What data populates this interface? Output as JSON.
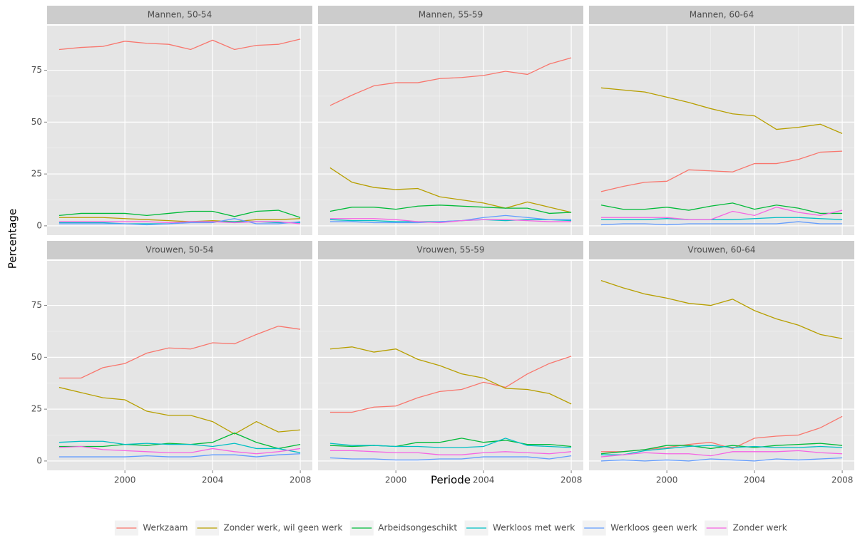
{
  "chart_data": {
    "type": "line",
    "x_label": "Periode",
    "y_label": "Percentage",
    "x": [
      1997,
      1998,
      1999,
      2000,
      2001,
      2002,
      2003,
      2004,
      2005,
      2006,
      2007,
      2008
    ],
    "xlim": [
      1996.45,
      2008.55
    ],
    "xticks": [
      2000,
      2004,
      2008
    ],
    "ylim": [
      -4.5,
      96.5
    ],
    "yticks": [
      0,
      25,
      50,
      75
    ],
    "grid": true,
    "legend": "bottom",
    "series": [
      {
        "name": "Werkzaam",
        "color": "#F8766D"
      },
      {
        "name": "Zonder werk, wil geen werk",
        "color": "#B79F00"
      },
      {
        "name": "Arbeidsongeschikt",
        "color": "#00BA38"
      },
      {
        "name": "Werkloos met werk",
        "color": "#00BFC4"
      },
      {
        "name": "Werkloos geen werk",
        "color": "#619CFF"
      },
      {
        "name": "Zonder werk",
        "color": "#F564E3"
      }
    ],
    "panels": [
      {
        "title": "Mannen, 50-54",
        "series": [
          {
            "values": [
              85,
              86,
              86.5,
              89,
              88,
              87.5,
              85,
              89.5,
              85,
              87,
              87.5,
              90
            ]
          },
          {
            "values": [
              4,
              4,
              4,
              3.5,
              3,
              2.5,
              2,
              2.5,
              2,
              3,
              3,
              3.5
            ]
          },
          {
            "values": [
              5,
              6,
              6,
              6,
              5,
              6,
              7,
              7,
              4.5,
              7,
              7.5,
              4
            ]
          },
          {
            "values": [
              1.5,
              1.5,
              1.5,
              1,
              1,
              1,
              2,
              2,
              2,
              2,
              1.5,
              1.5
            ]
          },
          {
            "values": [
              1,
              1,
              1,
              1,
              0.5,
              1,
              1.5,
              1.5,
              3.5,
              1,
              1,
              2
            ]
          },
          {
            "values": [
              2,
              2,
              2,
              2,
              2,
              1.5,
              2,
              2,
              1.5,
              2,
              2,
              1
            ]
          }
        ]
      },
      {
        "title": "Mannen, 55-59",
        "series": [
          {
            "values": [
              58,
              63,
              67.5,
              69,
              69,
              71,
              71.5,
              72.5,
              74.5,
              73,
              78,
              81
            ]
          },
          {
            "values": [
              28,
              21,
              18.5,
              17.5,
              18,
              14,
              12.5,
              11,
              8.5,
              11.5,
              9,
              6.5
            ]
          },
          {
            "values": [
              7,
              9,
              9,
              8,
              9.5,
              10,
              9.5,
              9,
              8.5,
              8.5,
              6,
              6.5
            ]
          },
          {
            "values": [
              3,
              2.5,
              2.5,
              2,
              2,
              2,
              2.5,
              3,
              2.5,
              3,
              3,
              2.5
            ]
          },
          {
            "values": [
              2,
              2,
              1.5,
              1.5,
              1.5,
              2,
              2.5,
              4,
              5,
              4,
              3,
              3
            ]
          },
          {
            "values": [
              3.5,
              3.5,
              3.5,
              3,
              2,
              1.5,
              2.5,
              3,
              3,
              2.5,
              2,
              2
            ]
          }
        ]
      },
      {
        "title": "Mannen, 60-64",
        "series": [
          {
            "values": [
              16.5,
              19,
              21,
              21.5,
              27,
              26.5,
              26,
              30,
              30,
              32,
              35.5,
              36
            ]
          },
          {
            "values": [
              66.5,
              65.5,
              64.5,
              62,
              59.5,
              56.5,
              54,
              53,
              46.5,
              47.5,
              49,
              44.5
            ]
          },
          {
            "values": [
              10,
              8,
              8,
              9,
              7.5,
              9.5,
              11,
              8,
              10,
              8.5,
              6,
              6
            ]
          },
          {
            "values": [
              3,
              3,
              3,
              3.5,
              3,
              3,
              3,
              3.5,
              4,
              4,
              3.5,
              3
            ]
          },
          {
            "values": [
              0.5,
              1,
              1,
              0.5,
              1,
              1,
              1,
              1,
              1,
              2,
              1,
              1
            ]
          },
          {
            "values": [
              4,
              4,
              4,
              4,
              3,
              3,
              7,
              5,
              9,
              6.5,
              5,
              7.5
            ]
          }
        ]
      },
      {
        "title": "Vrouwen, 50-54",
        "series": [
          {
            "values": [
              40,
              40,
              45,
              47,
              52,
              54.5,
              54,
              57,
              56.5,
              61,
              65,
              63.5
            ]
          },
          {
            "values": [
              35.5,
              33,
              30.5,
              29.5,
              24,
              22,
              22,
              19,
              13,
              19,
              14,
              15
            ]
          },
          {
            "values": [
              7,
              7,
              7,
              8,
              7.5,
              8.5,
              8,
              9,
              13.5,
              9,
              6,
              8
            ]
          },
          {
            "values": [
              9,
              9.5,
              9.5,
              8,
              8.5,
              8,
              8,
              7,
              8.5,
              6,
              6,
              4
            ]
          },
          {
            "values": [
              2,
              2,
              2,
              2,
              2.5,
              2,
              2,
              3,
              3,
              2,
              3,
              3.5
            ]
          },
          {
            "values": [
              6.5,
              7,
              5.5,
              5,
              4.5,
              4,
              4,
              6,
              4.5,
              3.5,
              4.5,
              6
            ]
          }
        ]
      },
      {
        "title": "Vrouwen, 55-59",
        "series": [
          {
            "values": [
              23.5,
              23.5,
              26,
              26.5,
              30.5,
              33.5,
              34.5,
              38,
              35.5,
              42,
              47,
              50.5
            ]
          },
          {
            "values": [
              54,
              55,
              52.5,
              54,
              49,
              46,
              42,
              40,
              35,
              34.5,
              32.5,
              27.5
            ]
          },
          {
            "values": [
              7.5,
              7,
              7.5,
              7,
              9,
              9,
              11,
              9,
              10,
              8,
              8,
              7
            ]
          },
          {
            "values": [
              8.5,
              7.5,
              7.5,
              7,
              7,
              6.5,
              6.5,
              7,
              11,
              7.5,
              7,
              6.5
            ]
          },
          {
            "values": [
              1.5,
              1,
              1,
              0.5,
              0.5,
              1,
              1,
              2,
              2,
              2,
              1,
              2.5
            ]
          },
          {
            "values": [
              5,
              5,
              4.5,
              4,
              4,
              3,
              3,
              4,
              4.5,
              4,
              3.5,
              4.5
            ]
          }
        ]
      },
      {
        "title": "Vrouwen, 60-64",
        "series": [
          {
            "values": [
              4.5,
              4.5,
              5.5,
              6.5,
              8,
              9,
              6,
              11,
              12,
              12.5,
              16,
              21.5
            ]
          },
          {
            "values": [
              87,
              83.5,
              80.5,
              78.5,
              76,
              75,
              78,
              72.5,
              68.5,
              65.5,
              61,
              59
            ]
          },
          {
            "values": [
              3.5,
              4.5,
              5.5,
              7.5,
              7.5,
              6,
              7.5,
              6.5,
              7.5,
              8,
              8.5,
              7.5
            ]
          },
          {
            "values": [
              3,
              3,
              5,
              6,
              7,
              7.5,
              6.5,
              7,
              6.5,
              6.5,
              7,
              6.5
            ]
          },
          {
            "values": [
              0,
              0.5,
              0,
              0.5,
              0,
              1,
              0.5,
              0,
              1,
              0.5,
              1,
              1.5
            ]
          },
          {
            "values": [
              2,
              3,
              4,
              3.5,
              3.5,
              2.5,
              4.5,
              4.5,
              4.5,
              5,
              4,
              3.5
            ]
          }
        ]
      }
    ]
  }
}
